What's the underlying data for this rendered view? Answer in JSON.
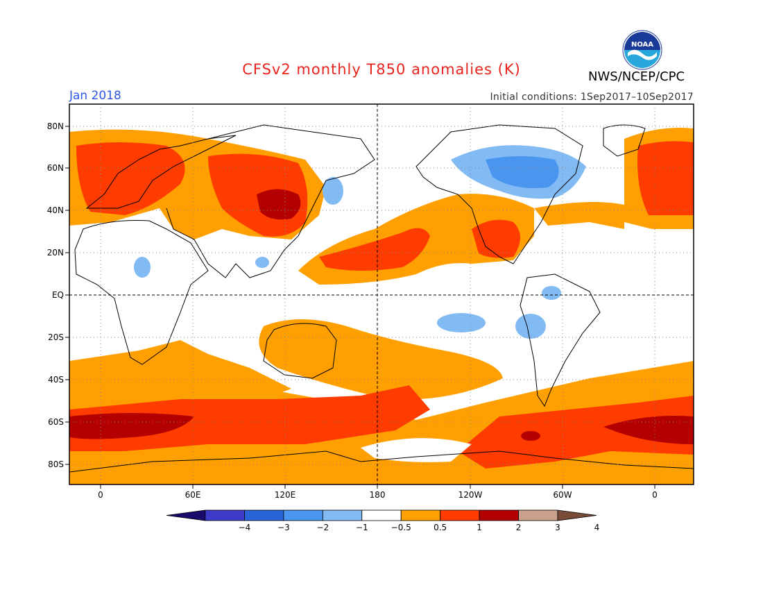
{
  "header": {
    "title": "CFSv2 monthly T850 anomalies (K)",
    "month": "Jan 2018",
    "initial_conditions": "Initial conditions: 1Sep2017–10Sep2017",
    "agency": "NWS/NCEP/CPC",
    "logo_text": "NOAA",
    "logo_icon": "noaa-logo-icon"
  },
  "map": {
    "projection": "equirectangular",
    "lon_range": [
      -20,
      380
    ],
    "lat_range": [
      -90,
      90
    ],
    "lat_ticks": [
      "80N",
      "60N",
      "40N",
      "20N",
      "EQ",
      "20S",
      "40S",
      "60S",
      "80S"
    ],
    "lon_ticks": [
      "0",
      "60E",
      "120E",
      "180",
      "120W",
      "60W",
      "0"
    ],
    "grid": "dotted",
    "land_outlines": "coastlines"
  },
  "colorbar": {
    "labels": [
      "−4",
      "−3",
      "−2",
      "−1",
      "−0.5",
      "0.5",
      "1",
      "2",
      "3",
      "4"
    ],
    "colors": [
      "#1a0a6e",
      "#3c3cc8",
      "#2864d8",
      "#4a96ee",
      "#82baf4",
      "#ffffff",
      "#ffa000",
      "#ff3c00",
      "#b40000",
      "#c8a08c",
      "#7a4a38"
    ]
  }
}
